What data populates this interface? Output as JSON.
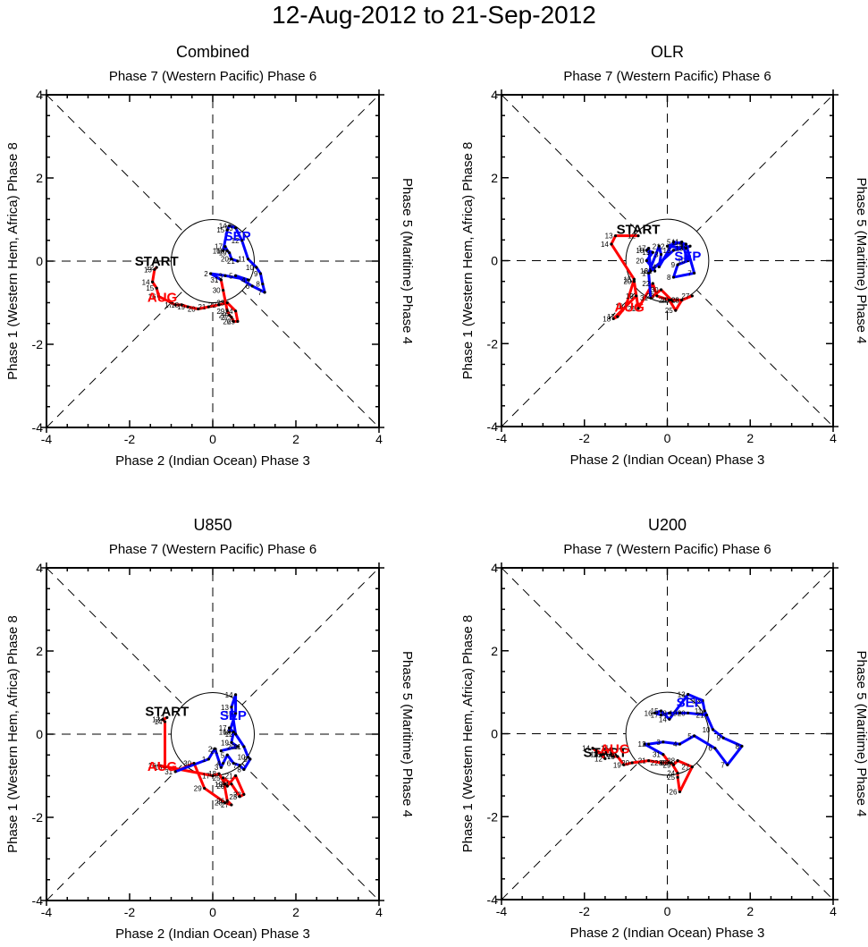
{
  "title": "12-Aug-2012 to 21-Sep-2012",
  "colors": {
    "aug": "#ff0000",
    "sep": "#0000ff",
    "axis": "#000000",
    "start": "#000000"
  },
  "chart_data": [
    {
      "type": "line",
      "name": "combined",
      "title": "Combined",
      "top_label": "Phase 7 (Western Pacific) Phase 6",
      "bottom_label": "Phase 2 (Indian Ocean) Phase 3",
      "left_label": "Phase 1 (Western Hem, Africa) Phase 8",
      "right_label": "Phase 5 (Maritime) Phase 4",
      "xlim": [
        -4,
        4
      ],
      "ylim": [
        -4,
        4
      ],
      "xticks": [
        "-4",
        "-2",
        "0",
        "2",
        "4"
      ],
      "yticks": [
        "-4",
        "-2",
        "0",
        "2",
        "4"
      ],
      "labels": {
        "start": "START",
        "aug": "AUG",
        "sep": "SEP"
      },
      "series": [
        {
          "name": "Aug",
          "color": "aug",
          "days": [
            "12",
            "13",
            "14",
            "15",
            "16",
            "17",
            "18",
            "19",
            "20",
            "21",
            "22",
            "23",
            "24",
            "25",
            "26",
            "27",
            "28",
            "29",
            "30",
            "31"
          ],
          "x": [
            -1.35,
            -1.4,
            -1.45,
            -1.35,
            -1.3,
            -0.9,
            -0.75,
            -0.6,
            -0.35,
            -0.1,
            0.15,
            0.35,
            0.55,
            0.6,
            0.5,
            0.45,
            0.4,
            0.35,
            0.25,
            0.2
          ],
          "y": [
            -0.15,
            -0.2,
            -0.5,
            -0.65,
            -0.85,
            -1.05,
            -1.05,
            -1.1,
            -1.15,
            -1.1,
            -1.05,
            -1.0,
            -1.2,
            -1.45,
            -1.45,
            -1.35,
            -1.3,
            -1.2,
            -0.7,
            -0.45
          ]
        },
        {
          "name": "Sep",
          "color": "sep",
          "days": [
            "1",
            "2",
            "3",
            "4",
            "5",
            "6",
            "7",
            "8",
            "9",
            "10",
            "11",
            "12",
            "13",
            "14",
            "15",
            "16",
            "17",
            "18",
            "19",
            "20",
            "21"
          ],
          "x": [
            0.2,
            -0.05,
            0.3,
            0.85,
            0.55,
            0.95,
            1.25,
            1.2,
            1.15,
            1.05,
            0.85,
            0.7,
            0.55,
            0.4,
            0.35,
            0.25,
            0.3,
            0.35,
            0.4,
            0.45,
            0.6
          ],
          "y": [
            -0.45,
            -0.3,
            -0.35,
            -0.45,
            -0.35,
            -0.6,
            -0.75,
            -0.55,
            -0.3,
            -0.15,
            0.05,
            0.5,
            0.8,
            0.85,
            0.75,
            0.25,
            0.35,
            0.25,
            0.2,
            0.05,
            0.0
          ]
        }
      ]
    },
    {
      "type": "line",
      "name": "olr",
      "title": "OLR",
      "top_label": "Phase 7 (Western Pacific) Phase 6",
      "bottom_label": "Phase 2 (Indian Ocean) Phase 3",
      "left_label": "Phase 1 (Western Hem, Africa) Phase 8",
      "right_label": "Phase 5 (Maritime) Phase 4",
      "xlim": [
        -4,
        4
      ],
      "ylim": [
        -4,
        4
      ],
      "xticks": [
        "-4",
        "-2",
        "0",
        "2",
        "4"
      ],
      "yticks": [
        "-4",
        "-2",
        "0",
        "2",
        "4"
      ],
      "labels": {
        "start": "START",
        "aug": "AUG",
        "sep": "SEP"
      },
      "series": [
        {
          "name": "Aug",
          "color": "aug",
          "days": [
            "12",
            "13",
            "14",
            "15",
            "16",
            "17",
            "18",
            "19",
            "20",
            "21",
            "22",
            "23",
            "24",
            "25",
            "26",
            "27",
            "28",
            "29",
            "30",
            "31"
          ],
          "x": [
            -0.7,
            -1.25,
            -1.35,
            -0.8,
            -1.0,
            -1.2,
            -1.3,
            -0.75,
            -0.8,
            -0.7,
            -0.35,
            -0.25,
            0.05,
            0.2,
            0.35,
            0.6,
            0.35,
            0.1,
            -0.15,
            -0.4
          ],
          "y": [
            0.6,
            0.6,
            0.4,
            -0.45,
            -1.1,
            -1.35,
            -1.4,
            -0.85,
            -0.5,
            -1.15,
            -0.55,
            -0.85,
            -0.95,
            -1.2,
            -0.95,
            -0.85,
            -0.95,
            -0.95,
            -0.7,
            -0.9
          ]
        },
        {
          "name": "Sep",
          "color": "sep",
          "days": [
            "1",
            "2",
            "3",
            "4",
            "5",
            "6",
            "7",
            "8",
            "9",
            "10",
            "11",
            "12",
            "13",
            "14",
            "15",
            "16",
            "17",
            "18",
            "19",
            "20",
            "21"
          ],
          "x": [
            -0.45,
            -0.2,
            -0.15,
            -0.2,
            0.15,
            0.45,
            0.65,
            0.15,
            0.25,
            0.5,
            0.35,
            0.0,
            0.45,
            0.55,
            0.15,
            -0.4,
            -0.45,
            -0.5,
            -0.35,
            -0.5,
            -0.3
          ],
          "y": [
            -0.3,
            0.35,
            0.15,
            -0.15,
            0.45,
            0.4,
            -0.3,
            -0.4,
            -0.1,
            0.0,
            0.45,
            0.35,
            0.3,
            0.35,
            0.25,
            -0.25,
            0.3,
            0.25,
            0.2,
            0.0,
            -0.25
          ]
        }
      ]
    },
    {
      "type": "line",
      "name": "u850",
      "title": "U850",
      "top_label": "Phase 7 (Western Pacific) Phase 6",
      "bottom_label": "Phase 2 (Indian Ocean) Phase 3",
      "left_label": "Phase 1 (Western Hem, Africa) Phase 8",
      "right_label": "Phase 5 (Maritime) Phase 4",
      "xlim": [
        -4,
        4
      ],
      "ylim": [
        -4,
        4
      ],
      "xticks": [
        "-4",
        "-2",
        "0",
        "2",
        "4"
      ],
      "yticks": [
        "-4",
        "-2",
        "0",
        "2",
        "4"
      ],
      "labels": {
        "start": "START",
        "aug": "AUG",
        "sep": "SEP"
      },
      "series": [
        {
          "name": "Aug",
          "color": "aug",
          "days": [
            "12",
            "13",
            "14",
            "15",
            "16",
            "17",
            "18",
            "19",
            "20",
            "21",
            "22",
            "23",
            "24",
            "25",
            "26",
            "27",
            "28",
            "29",
            "30",
            "31"
          ],
          "x": [
            -1.1,
            -1.2,
            -1.15,
            -1.15,
            -1.3,
            0.0,
            0.15,
            0.3,
            0.35,
            0.55,
            0.75,
            0.65,
            0.45,
            0.25,
            0.35,
            0.45,
            0.3,
            -0.2,
            -0.45,
            -0.9
          ],
          "y": [
            0.4,
            0.35,
            0.3,
            -0.8,
            -0.75,
            -1.0,
            -0.95,
            -1.2,
            -1.25,
            -1.0,
            -1.45,
            -1.5,
            -1.2,
            -1.05,
            -1.6,
            -1.7,
            -1.65,
            -1.3,
            -0.7,
            -0.9
          ]
        },
        {
          "name": "Sep",
          "color": "sep",
          "days": [
            "1",
            "2",
            "3",
            "4",
            "5",
            "6",
            "7",
            "8",
            "9",
            "10",
            "11",
            "12",
            "13",
            "14",
            "15",
            "16",
            "17",
            "18",
            "19",
            "20",
            "21"
          ],
          "x": [
            -0.1,
            0.05,
            0.2,
            0.25,
            0.35,
            0.5,
            0.65,
            0.75,
            0.9,
            0.85,
            0.75,
            0.55,
            0.45,
            0.55,
            0.55,
            0.4,
            0.4,
            0.5,
            0.45,
            0.6,
            0.2
          ],
          "y": [
            -0.6,
            -0.35,
            -0.8,
            -0.7,
            -0.5,
            -0.7,
            -0.75,
            -0.85,
            -0.6,
            -0.55,
            -0.3,
            0.0,
            0.65,
            0.95,
            0.5,
            0.05,
            0.15,
            0.05,
            -0.2,
            -0.3,
            -0.4
          ]
        }
      ]
    },
    {
      "type": "line",
      "name": "u200",
      "title": "U200",
      "top_label": "Phase 7 (Western Pacific) Phase 6",
      "bottom_label": "Phase 2 (Indian Ocean) Phase 3",
      "left_label": "Phase 1 (Western Hem, Africa) Phase 8",
      "right_label": "Phase 5 (Maritime) Phase 4",
      "xlim": [
        -4,
        4
      ],
      "ylim": [
        -4,
        4
      ],
      "xticks": [
        "-4",
        "-2",
        "0",
        "2",
        "4"
      ],
      "yticks": [
        "-4",
        "-2",
        "0",
        "2",
        "4"
      ],
      "labels": {
        "start": "START",
        "aug": "AUG",
        "sep": "SEP"
      },
      "series": [
        {
          "name": "Aug",
          "color": "aug",
          "days": [
            "12",
            "13",
            "14",
            "15",
            "16",
            "17",
            "18",
            "19",
            "20",
            "21",
            "22",
            "23",
            "24",
            "25",
            "26",
            "27",
            "28",
            "29",
            "30",
            "31"
          ],
          "x": [
            -1.5,
            -1.6,
            -1.8,
            -1.55,
            -1.35,
            -1.3,
            -1.2,
            -1.05,
            -0.85,
            -0.45,
            -0.15,
            0.1,
            0.25,
            0.25,
            0.3,
            0.6,
            0.25,
            0.15,
            0.05,
            -0.1
          ],
          "y": [
            -0.6,
            -0.5,
            -0.35,
            -0.5,
            -0.35,
            -0.55,
            -0.55,
            -0.75,
            -0.7,
            -0.65,
            -0.7,
            -0.7,
            -0.95,
            -1.05,
            -1.4,
            -0.8,
            -0.65,
            -0.75,
            -0.7,
            -0.5
          ]
        },
        {
          "name": "Sep",
          "color": "sep",
          "days": [
            "1",
            "2",
            "3",
            "4",
            "5",
            "6",
            "7",
            "8",
            "9",
            "10",
            "11",
            "12",
            "13",
            "14",
            "15",
            "16",
            "17",
            "18",
            "19",
            "20",
            "21"
          ],
          "x": [
            -0.55,
            -0.45,
            -0.1,
            0.3,
            0.65,
            1.15,
            1.45,
            1.8,
            1.35,
            1.1,
            0.9,
            0.85,
            0.5,
            0.05,
            -0.15,
            -0.3,
            -0.15,
            0.05,
            0.3,
            0.5,
            0.95
          ],
          "y": [
            -0.25,
            -0.25,
            -0.2,
            -0.25,
            -0.05,
            -0.35,
            -0.75,
            -0.3,
            -0.1,
            0.1,
            0.55,
            0.8,
            0.95,
            0.35,
            0.55,
            0.5,
            0.45,
            0.5,
            0.5,
            0.5,
            0.45
          ]
        }
      ]
    }
  ]
}
